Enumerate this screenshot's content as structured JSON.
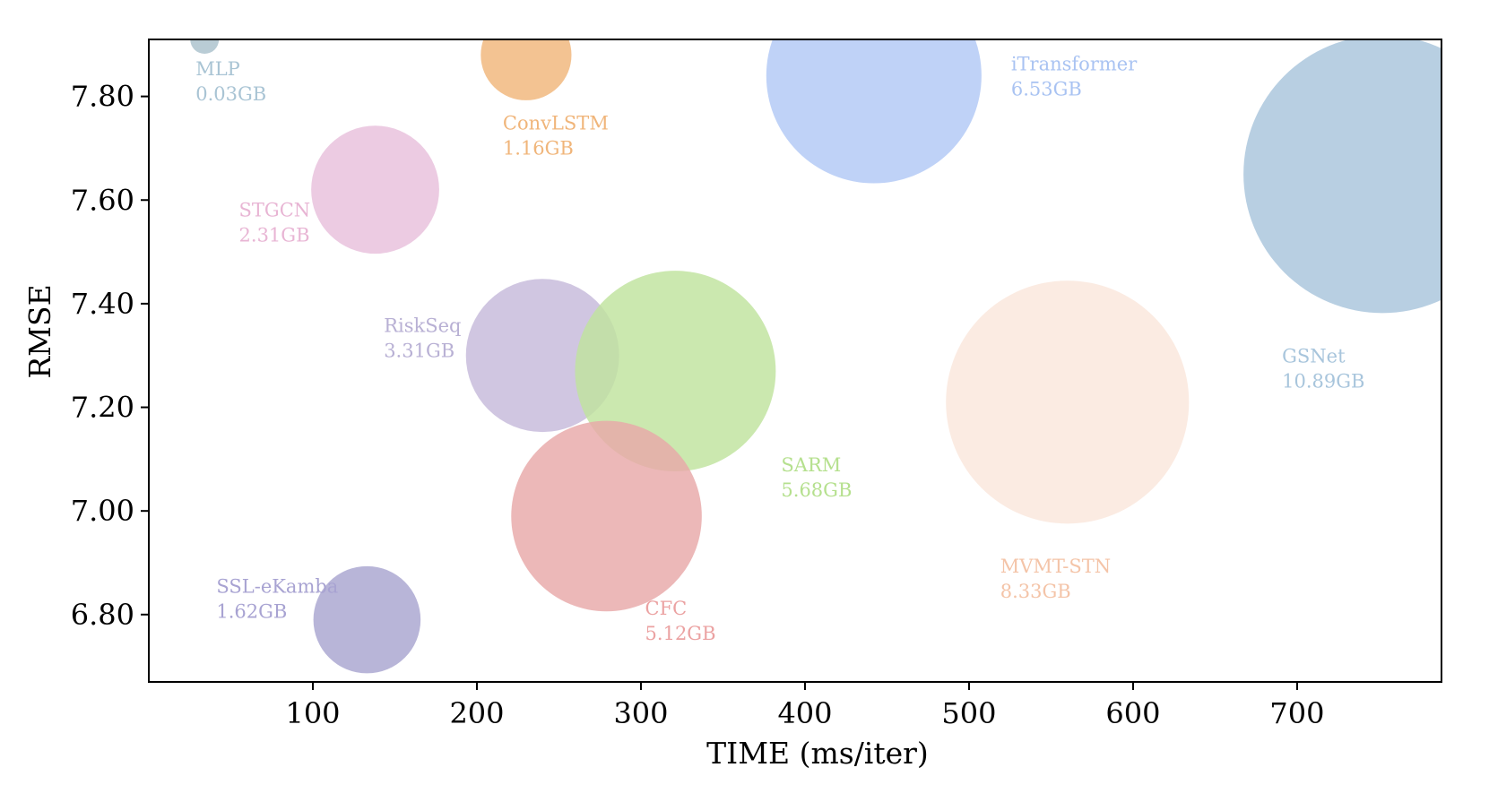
{
  "chart_data": {
    "type": "scatter",
    "variant": "bubble",
    "title": "",
    "xlabel": "TIME (ms/iter)",
    "ylabel": "RMSE",
    "xlim": [
      0,
      788
    ],
    "ylim": [
      6.67,
      7.91
    ],
    "xticks": [
      100,
      200,
      300,
      400,
      500,
      600,
      700
    ],
    "xtick_labels": [
      "100",
      "200",
      "300",
      "400",
      "500",
      "600",
      "700"
    ],
    "yticks": [
      6.8,
      7.0,
      7.2,
      7.4,
      7.6,
      7.8
    ],
    "ytick_labels": [
      "6.80",
      "7.00",
      "7.20",
      "7.40",
      "7.60",
      "7.80"
    ],
    "grid": false,
    "legend": "none",
    "points": [
      {
        "name": "MLP",
        "memory": "0.03GB",
        "memory_gb": 0.03,
        "x": 34,
        "y": 7.91,
        "color": "#a9c1cc"
      },
      {
        "name": "ConvLSTM",
        "memory": "1.16GB",
        "memory_gb": 1.16,
        "x": 230,
        "y": 7.88,
        "color": "#f0b67a"
      },
      {
        "name": "iTransformer",
        "memory": "6.53GB",
        "memory_gb": 6.53,
        "x": 442,
        "y": 7.84,
        "color": "#b1c8f5"
      },
      {
        "name": "STGCN",
        "memory": "2.31GB",
        "memory_gb": 2.31,
        "x": 138,
        "y": 7.62,
        "color": "#e8c0dc"
      },
      {
        "name": "GSNet",
        "memory": "10.89GB",
        "memory_gb": 10.89,
        "x": 752,
        "y": 7.65,
        "color": "#a8c5dc"
      },
      {
        "name": "RiskSeq",
        "memory": "3.31GB",
        "memory_gb": 3.31,
        "x": 240,
        "y": 7.3,
        "color": "#c6b9da"
      },
      {
        "name": "SARM",
        "memory": "5.68GB",
        "memory_gb": 5.68,
        "x": 321,
        "y": 7.27,
        "color": "#bfe39d"
      },
      {
        "name": "MVMT-STN",
        "memory": "8.33GB",
        "memory_gb": 8.33,
        "x": 560,
        "y": 7.21,
        "color": "#fae6dc"
      },
      {
        "name": "CFC",
        "memory": "5.12GB",
        "memory_gb": 5.12,
        "x": 279,
        "y": 6.99,
        "color": "#e8a8a8"
      },
      {
        "name": "SSL-eKamba",
        "memory": "1.62GB",
        "memory_gb": 1.62,
        "x": 133,
        "y": 6.79,
        "color": "#a8a5cf"
      }
    ],
    "label_colors": {
      "MLP": "#a9c4d4",
      "ConvLSTM": "#f0b57a",
      "iTransformer": "#a9c3f2",
      "STGCN": "#e8b5d4",
      "GSNet": "#a8c5dc",
      "RiskSeq": "#b8b0d4",
      "SARM": "#b5e08e",
      "MVMT-STN": "#f4c4a8",
      "CFC": "#eba2a2",
      "SSL-eKamba": "#a8a3d2"
    }
  }
}
